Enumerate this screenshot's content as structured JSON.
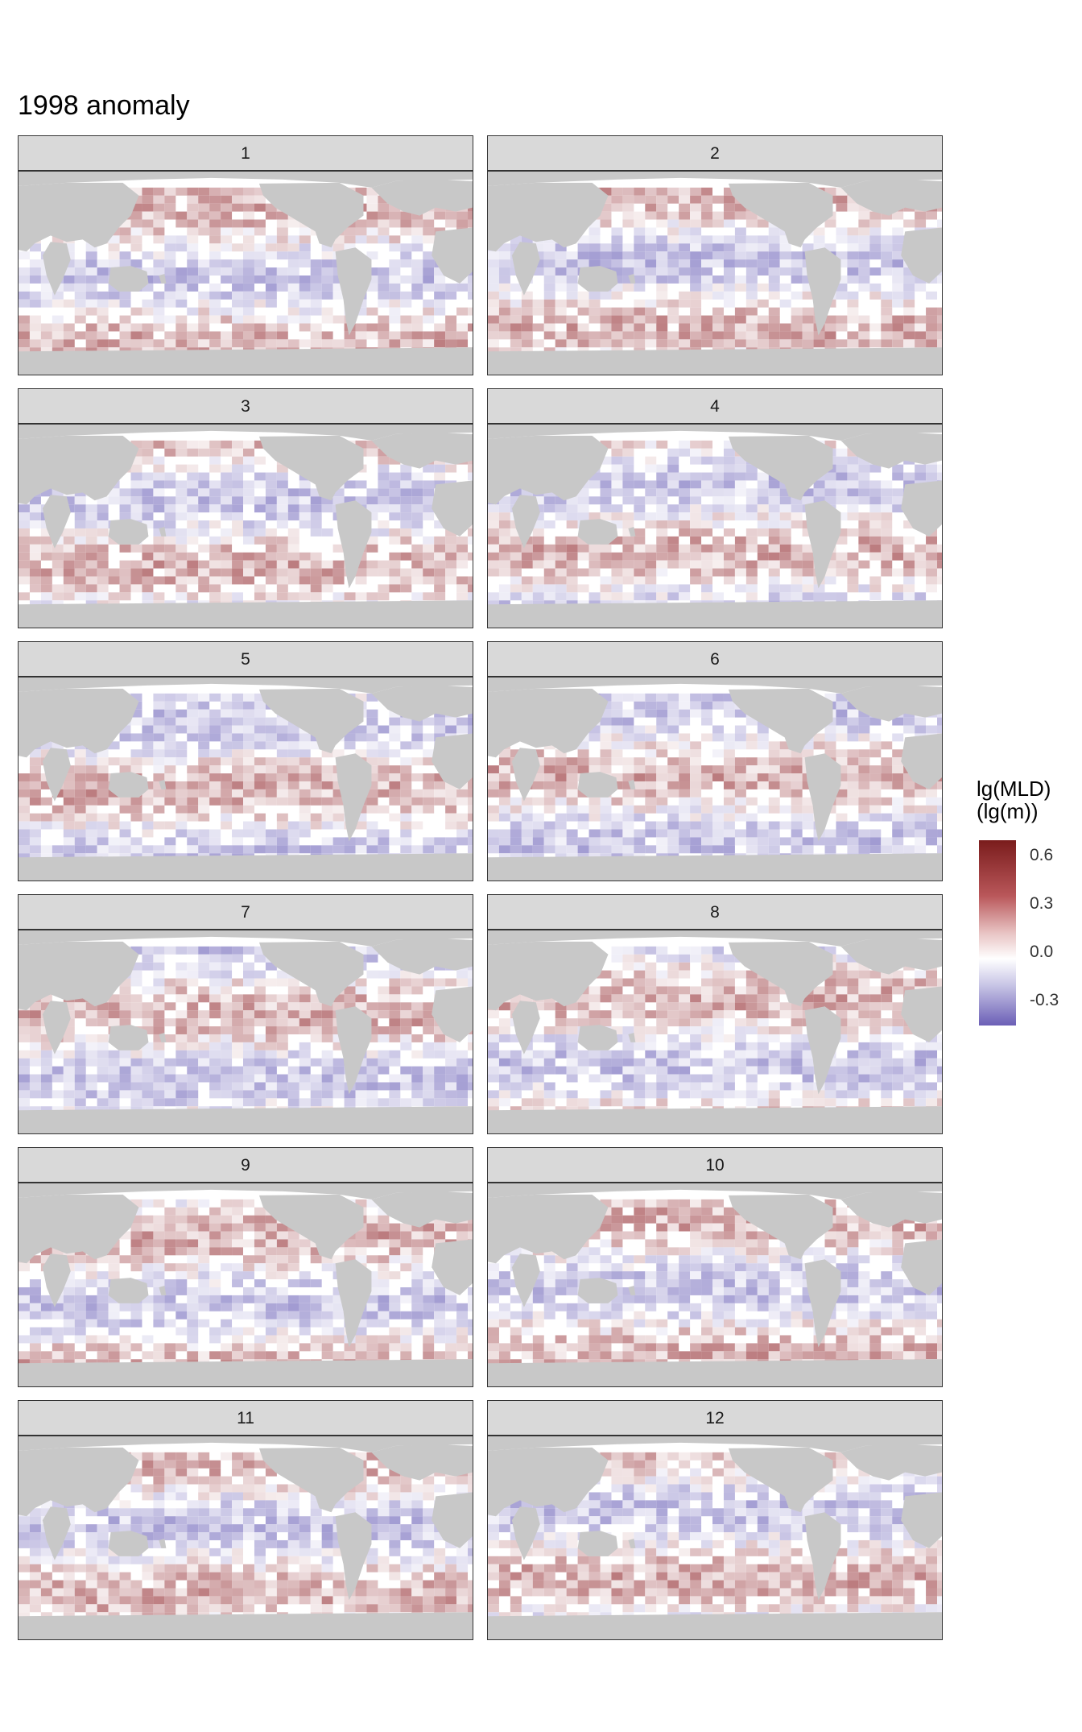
{
  "title": "1998 anomaly",
  "legend": {
    "title_line1": "lg(MLD)",
    "title_line2": "(lg(m))",
    "ticks": [
      "0.6",
      "0.3",
      "0.0",
      "-0.3"
    ],
    "colors": {
      "high": "#7a1c1c",
      "mid": "#ffffff",
      "low": "#6b5fb6",
      "land": "#c8c8c8"
    }
  },
  "chart_data": {
    "type": "heatmap",
    "facets": [
      "1",
      "2",
      "3",
      "4",
      "5",
      "6",
      "7",
      "8",
      "9",
      "10",
      "11",
      "12"
    ],
    "fill_label": "lg(MLD) (lg(m))",
    "fill_range": [
      -0.4,
      0.7
    ],
    "legend_breaks": [
      0.6,
      0.3,
      0.0,
      -0.3
    ]
  }
}
